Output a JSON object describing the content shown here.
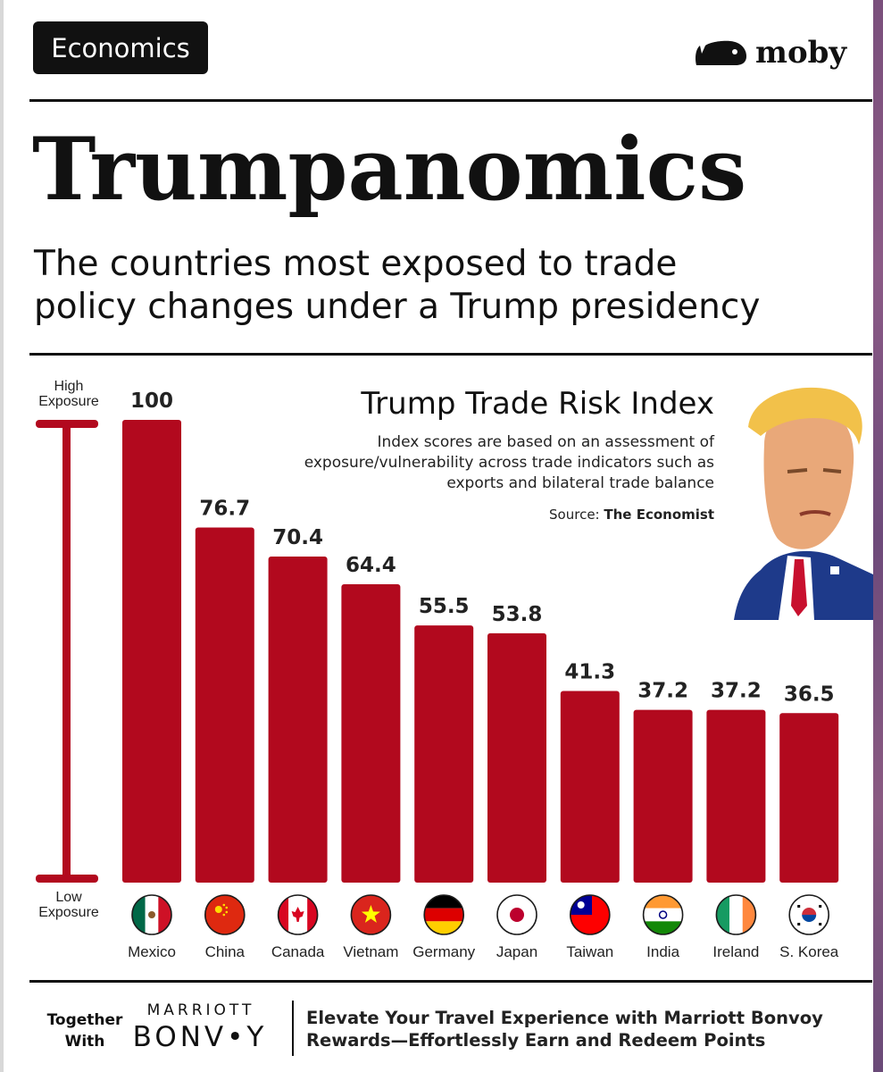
{
  "header": {
    "tag": "Economics",
    "brand": "moby",
    "title": "Trumpanomics",
    "subtitle_line1": "The countries most exposed to trade",
    "subtitle_line2": "policy changes under a Trump presidency"
  },
  "scale": {
    "high_line1": "High",
    "high_line2": "Exposure",
    "low_line1": "Low",
    "low_line2": "Exposure"
  },
  "chart_data": {
    "type": "bar",
    "title": "Trump Trade Risk Index",
    "subtitle": "Index scores are based on an assessment of exposure/vulnerability across trade indicators such as exports and bilateral trade balance",
    "source_label": "Source:",
    "source": "The Economist",
    "categories": [
      "Mexico",
      "China",
      "Canada",
      "Vietnam",
      "Germany",
      "Japan",
      "Taiwan",
      "India",
      "Ireland",
      "S. Korea"
    ],
    "values": [
      100,
      76.7,
      70.4,
      64.4,
      55.5,
      53.8,
      41.3,
      37.2,
      37.2,
      36.5
    ],
    "value_labels": [
      "100",
      "76.7",
      "70.4",
      "64.4",
      "55.5",
      "53.8",
      "41.3",
      "37.2",
      "37.2",
      "36.5"
    ],
    "ylim": [
      0,
      100
    ],
    "grid": false,
    "bar_color": "#b2091e",
    "flag_icons": [
      "mexico-flag-icon",
      "china-flag-icon",
      "canada-flag-icon",
      "vietnam-flag-icon",
      "germany-flag-icon",
      "japan-flag-icon",
      "taiwan-flag-icon",
      "india-flag-icon",
      "ireland-flag-icon",
      "south-korea-flag-icon"
    ]
  },
  "footer": {
    "together_line1": "Together",
    "together_line2": "With",
    "sponsor_line1": "MARRIOTT",
    "sponsor_line2": "BONV•Y",
    "promo_line1": "Elevate Your Travel Experience with Marriott Bonvoy",
    "promo_line2": "Rewards—Effortlessly Earn and Redeem Points"
  },
  "colors": {
    "accent": "#b2091e",
    "ink": "#111111"
  }
}
